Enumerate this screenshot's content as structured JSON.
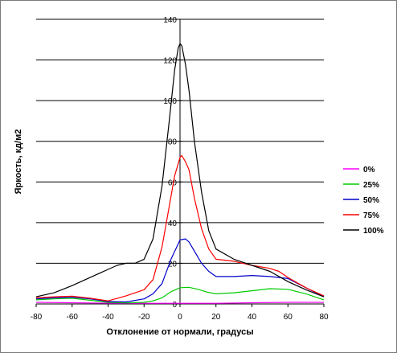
{
  "chart_data": {
    "type": "line",
    "title": "",
    "xlabel": "Отклонение от нормали, градусы",
    "ylabel": "Яркость, кд/м2",
    "xlim": [
      -80,
      80
    ],
    "ylim": [
      0,
      140
    ],
    "x_ticks": [
      "-80",
      "-60",
      "-40",
      "-20",
      "0",
      "20",
      "40",
      "60",
      "80"
    ],
    "y_ticks": [
      "0",
      "20",
      "40",
      "60",
      "80",
      "100",
      "120",
      "140"
    ],
    "grid": "horizontal",
    "legend_position": "right",
    "series": [
      {
        "name": "0%",
        "color": "#ff00ff",
        "points": [
          [
            -80,
            0.8
          ],
          [
            -60,
            0.6
          ],
          [
            -40,
            0.4
          ],
          [
            -20,
            0.3
          ],
          [
            -10,
            0.3
          ],
          [
            0,
            0.3
          ],
          [
            10,
            0.3
          ],
          [
            20,
            0.3
          ],
          [
            40,
            0.6
          ],
          [
            60,
            0.8
          ],
          [
            80,
            0.8
          ]
        ]
      },
      {
        "name": "25%",
        "color": "#00cc00",
        "points": [
          [
            -80,
            2
          ],
          [
            -70,
            2.5
          ],
          [
            -60,
            2.8
          ],
          [
            -50,
            1.8
          ],
          [
            -40,
            0.8
          ],
          [
            -30,
            0.5
          ],
          [
            -20,
            0.8
          ],
          [
            -15,
            1.5
          ],
          [
            -10,
            3
          ],
          [
            -5,
            6
          ],
          [
            0,
            8
          ],
          [
            5,
            8.2
          ],
          [
            10,
            7.2
          ],
          [
            15,
            5.8
          ],
          [
            20,
            5
          ],
          [
            30,
            5.5
          ],
          [
            40,
            6.5
          ],
          [
            50,
            7.5
          ],
          [
            60,
            7.2
          ],
          [
            70,
            5
          ],
          [
            80,
            2
          ]
        ]
      },
      {
        "name": "50%",
        "color": "#0000cc",
        "points": [
          [
            -80,
            2.5
          ],
          [
            -70,
            3
          ],
          [
            -60,
            3.3
          ],
          [
            -50,
            2.5
          ],
          [
            -40,
            1.2
          ],
          [
            -30,
            1
          ],
          [
            -20,
            2.5
          ],
          [
            -15,
            5
          ],
          [
            -10,
            10
          ],
          [
            -5,
            22
          ],
          [
            0,
            31.5
          ],
          [
            3,
            32
          ],
          [
            5,
            30.5
          ],
          [
            8,
            26
          ],
          [
            12,
            20
          ],
          [
            16,
            16
          ],
          [
            20,
            13.5
          ],
          [
            30,
            13.5
          ],
          [
            40,
            14
          ],
          [
            50,
            13.5
          ],
          [
            60,
            12.5
          ],
          [
            70,
            8
          ],
          [
            80,
            3.5
          ]
        ]
      },
      {
        "name": "75%",
        "color": "#ff0000",
        "points": [
          [
            -80,
            3
          ],
          [
            -70,
            3.5
          ],
          [
            -60,
            3.8
          ],
          [
            -50,
            2.8
          ],
          [
            -40,
            1.5
          ],
          [
            -30,
            4
          ],
          [
            -20,
            7
          ],
          [
            -15,
            12
          ],
          [
            -10,
            28
          ],
          [
            -6,
            48
          ],
          [
            -3,
            63
          ],
          [
            0,
            72
          ],
          [
            1,
            73
          ],
          [
            3,
            70
          ],
          [
            5,
            66
          ],
          [
            8,
            52
          ],
          [
            12,
            37
          ],
          [
            16,
            27
          ],
          [
            20,
            22
          ],
          [
            30,
            21
          ],
          [
            40,
            19
          ],
          [
            50,
            17.5
          ],
          [
            55,
            16
          ],
          [
            60,
            13
          ],
          [
            70,
            8
          ],
          [
            80,
            4
          ]
        ]
      },
      {
        "name": "100%",
        "color": "#000000",
        "points": [
          [
            -80,
            3.5
          ],
          [
            -75,
            4.5
          ],
          [
            -70,
            5.5
          ],
          [
            -60,
            9
          ],
          [
            -50,
            13
          ],
          [
            -40,
            17
          ],
          [
            -35,
            19
          ],
          [
            -30,
            20
          ],
          [
            -25,
            20
          ],
          [
            -20,
            22
          ],
          [
            -15,
            32
          ],
          [
            -10,
            58
          ],
          [
            -6,
            90
          ],
          [
            -3,
            115
          ],
          [
            -1,
            126
          ],
          [
            0,
            128
          ],
          [
            1,
            127
          ],
          [
            3,
            118
          ],
          [
            5,
            105
          ],
          [
            8,
            80
          ],
          [
            12,
            55
          ],
          [
            16,
            36
          ],
          [
            20,
            27
          ],
          [
            30,
            22
          ],
          [
            40,
            19
          ],
          [
            50,
            16
          ],
          [
            60,
            11
          ],
          [
            70,
            7
          ],
          [
            80,
            3.5
          ]
        ]
      }
    ]
  }
}
